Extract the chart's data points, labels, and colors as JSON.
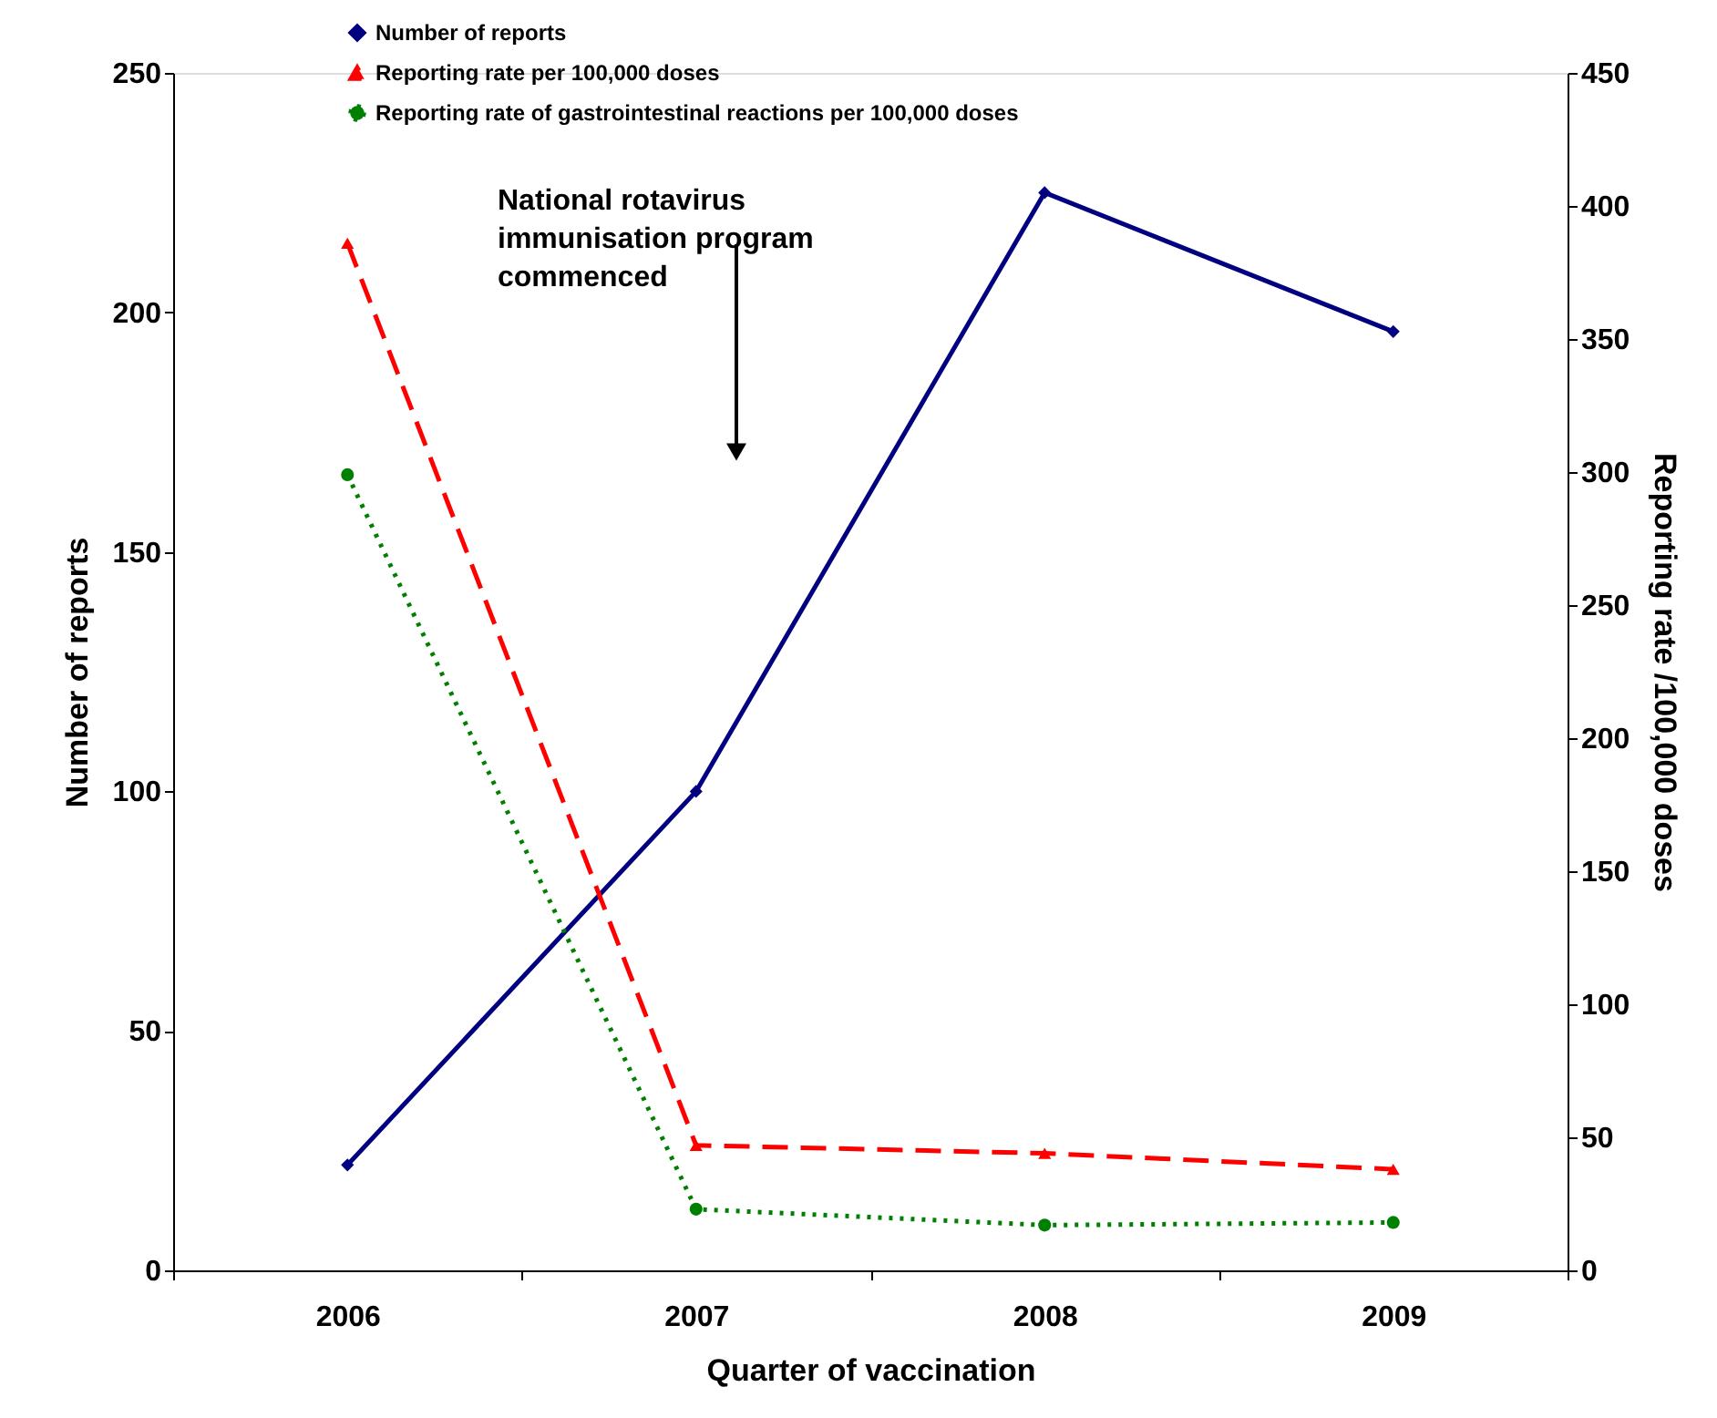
{
  "chart_data": {
    "type": "line",
    "categories": [
      "2006",
      "2007",
      "2008",
      "2009"
    ],
    "xlabel": "Quarter of vaccination",
    "ylabel": "Number of reports",
    "y2label": "Reporting rate /100,000 doses",
    "ylim": [
      0,
      250
    ],
    "yticks": [
      0,
      50,
      100,
      150,
      200,
      250
    ],
    "y2lim": [
      0,
      450
    ],
    "y2ticks": [
      0,
      50,
      100,
      150,
      200,
      250,
      300,
      350,
      400,
      450
    ],
    "series": [
      {
        "name": "Number of reports",
        "color": "#000080",
        "values": [
          22,
          100,
          225,
          196
        ],
        "marker": "diamond",
        "line_style": "solid"
      },
      {
        "name": "Reporting rate per 100,000 doses",
        "color": "#ff0000",
        "values": [
          386,
          47,
          44,
          38
        ],
        "axis": "y2",
        "marker": "triangle",
        "line_style": "dashed"
      },
      {
        "name": "Reporting rate of gastrointestinal reactions per 100,000 doses",
        "color": "#008000",
        "values": [
          299,
          23,
          17,
          18
        ],
        "axis": "y2",
        "marker": "circle",
        "line_style": "dotted"
      }
    ],
    "annotations": [
      "National rotavirus immunisation program commenced"
    ],
    "legend": "top",
    "grid": false
  }
}
